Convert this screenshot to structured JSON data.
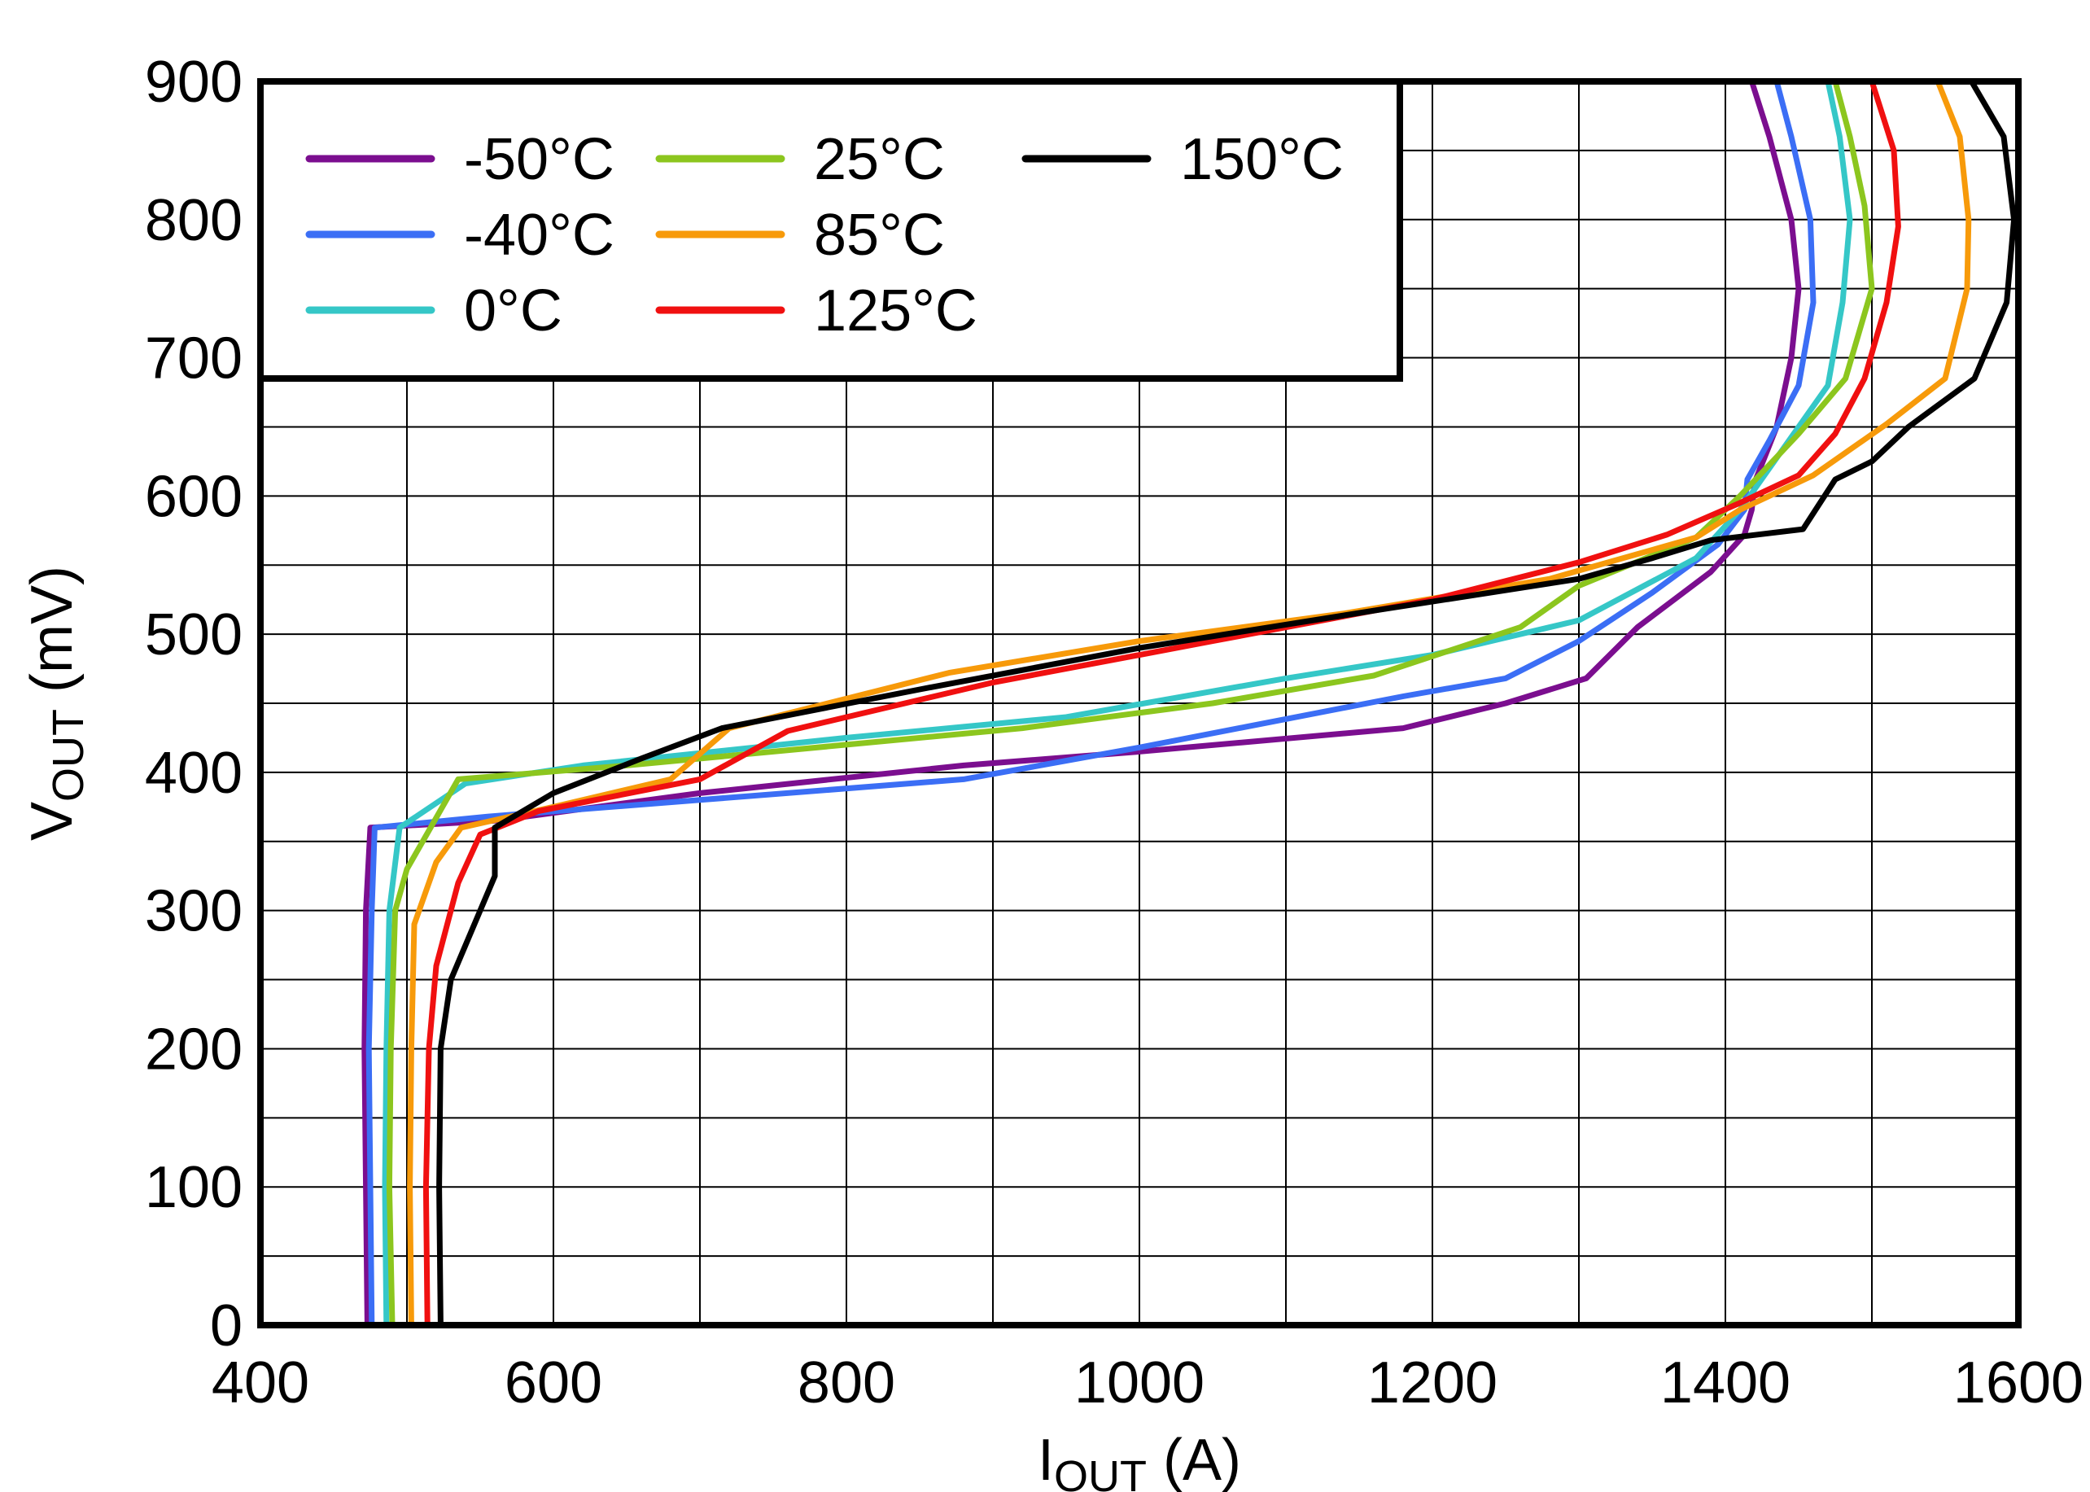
{
  "chart_data": {
    "type": "line",
    "title": "",
    "xlabel": {
      "main": "I",
      "sub": "OUT",
      "unit": " (A)"
    },
    "ylabel": {
      "main": "V",
      "sub": "OUT",
      "unit": " (mV)"
    },
    "xlim": [
      400,
      1600
    ],
    "ylim": [
      0,
      900
    ],
    "x_ticks": [
      400,
      600,
      800,
      1000,
      1200,
      1400,
      1600
    ],
    "y_ticks": [
      0,
      100,
      200,
      300,
      400,
      500,
      600,
      700,
      800,
      900
    ],
    "x_tick_labels": [
      "400",
      "600",
      "800",
      "1000",
      "1200",
      "1400",
      "1600"
    ],
    "y_tick_labels": [
      "0",
      "100",
      "200",
      "300",
      "400",
      "500",
      "600",
      "700",
      "800",
      "900"
    ],
    "x_minor_step": 100,
    "y_minor_step": 50,
    "grid": true,
    "legend_position": "top-left",
    "series": [
      {
        "name": "-50°C",
        "color": "#7B0E8F",
        "points": [
          [
            473,
            0
          ],
          [
            472,
            100
          ],
          [
            471,
            200
          ],
          [
            472,
            300
          ],
          [
            475,
            360
          ],
          [
            560,
            365
          ],
          [
            700,
            385
          ],
          [
            880,
            405
          ],
          [
            1000,
            415
          ],
          [
            1180,
            432
          ],
          [
            1250,
            450
          ],
          [
            1305,
            468
          ],
          [
            1340,
            505
          ],
          [
            1390,
            545
          ],
          [
            1413,
            572
          ],
          [
            1418,
            590
          ],
          [
            1420,
            610
          ],
          [
            1435,
            650
          ],
          [
            1445,
            700
          ],
          [
            1450,
            750
          ],
          [
            1445,
            800
          ],
          [
            1430,
            860
          ],
          [
            1418,
            900
          ]
        ]
      },
      {
        "name": "-40°C",
        "color": "#3B6EF5",
        "points": [
          [
            476,
            0
          ],
          [
            475,
            100
          ],
          [
            474,
            200
          ],
          [
            476,
            300
          ],
          [
            478,
            360
          ],
          [
            555,
            368
          ],
          [
            700,
            380
          ],
          [
            880,
            395
          ],
          [
            1000,
            418
          ],
          [
            1180,
            455
          ],
          [
            1250,
            468
          ],
          [
            1300,
            495
          ],
          [
            1350,
            530
          ],
          [
            1395,
            565
          ],
          [
            1413,
            590
          ],
          [
            1415,
            612
          ],
          [
            1430,
            640
          ],
          [
            1450,
            680
          ],
          [
            1460,
            740
          ],
          [
            1458,
            800
          ],
          [
            1445,
            860
          ],
          [
            1435,
            900
          ]
        ]
      },
      {
        "name": "0°C",
        "color": "#35C7C7",
        "points": [
          [
            486,
            0
          ],
          [
            485,
            100
          ],
          [
            486,
            200
          ],
          [
            488,
            300
          ],
          [
            495,
            360
          ],
          [
            540,
            392
          ],
          [
            620,
            405
          ],
          [
            800,
            425
          ],
          [
            950,
            440
          ],
          [
            1100,
            468
          ],
          [
            1200,
            485
          ],
          [
            1300,
            510
          ],
          [
            1380,
            555
          ],
          [
            1410,
            590
          ],
          [
            1440,
            635
          ],
          [
            1470,
            680
          ],
          [
            1480,
            740
          ],
          [
            1485,
            800
          ],
          [
            1478,
            860
          ],
          [
            1470,
            900
          ]
        ]
      },
      {
        "name": "25°C",
        "color": "#8CC61E",
        "points": [
          [
            490,
            0
          ],
          [
            488,
            100
          ],
          [
            489,
            200
          ],
          [
            492,
            300
          ],
          [
            500,
            330
          ],
          [
            535,
            395
          ],
          [
            650,
            405
          ],
          [
            800,
            420
          ],
          [
            920,
            432
          ],
          [
            1050,
            450
          ],
          [
            1160,
            470
          ],
          [
            1260,
            505
          ],
          [
            1300,
            535
          ],
          [
            1380,
            570
          ],
          [
            1410,
            600
          ],
          [
            1450,
            645
          ],
          [
            1482,
            685
          ],
          [
            1500,
            750
          ],
          [
            1495,
            810
          ],
          [
            1485,
            860
          ],
          [
            1475,
            900
          ]
        ]
      },
      {
        "name": "85°C",
        "color": "#F79A0A",
        "points": [
          [
            503,
            0
          ],
          [
            502,
            100
          ],
          [
            503,
            200
          ],
          [
            505,
            290
          ],
          [
            520,
            335
          ],
          [
            537,
            360
          ],
          [
            600,
            375
          ],
          [
            680,
            395
          ],
          [
            720,
            432
          ],
          [
            870,
            472
          ],
          [
            1000,
            495
          ],
          [
            1140,
            515
          ],
          [
            1280,
            540
          ],
          [
            1380,
            570
          ],
          [
            1410,
            590
          ],
          [
            1460,
            615
          ],
          [
            1510,
            652
          ],
          [
            1550,
            685
          ],
          [
            1565,
            750
          ],
          [
            1566,
            800
          ],
          [
            1560,
            860
          ],
          [
            1545,
            900
          ]
        ]
      },
      {
        "name": "125°C",
        "color": "#F01010",
        "points": [
          [
            514,
            0
          ],
          [
            513,
            100
          ],
          [
            515,
            200
          ],
          [
            520,
            260
          ],
          [
            535,
            320
          ],
          [
            550,
            355
          ],
          [
            590,
            372
          ],
          [
            700,
            395
          ],
          [
            760,
            430
          ],
          [
            900,
            465
          ],
          [
            1050,
            495
          ],
          [
            1200,
            525
          ],
          [
            1300,
            552
          ],
          [
            1360,
            572
          ],
          [
            1410,
            595
          ],
          [
            1450,
            615
          ],
          [
            1475,
            645
          ],
          [
            1495,
            685
          ],
          [
            1510,
            740
          ],
          [
            1518,
            795
          ],
          [
            1515,
            850
          ],
          [
            1500,
            900
          ]
        ]
      },
      {
        "name": "150°C",
        "color": "#000000",
        "points": [
          [
            523,
            0
          ],
          [
            522,
            100
          ],
          [
            523,
            200
          ],
          [
            530,
            250
          ],
          [
            560,
            325
          ],
          [
            560,
            360
          ],
          [
            600,
            385
          ],
          [
            660,
            410
          ],
          [
            715,
            432
          ],
          [
            850,
            460
          ],
          [
            1000,
            490
          ],
          [
            1160,
            517
          ],
          [
            1300,
            540
          ],
          [
            1350,
            555
          ],
          [
            1390,
            568
          ],
          [
            1453,
            576
          ],
          [
            1475,
            612
          ],
          [
            1500,
            625
          ],
          [
            1525,
            650
          ],
          [
            1570,
            685
          ],
          [
            1592,
            740
          ],
          [
            1597,
            800
          ],
          [
            1590,
            860
          ],
          [
            1568,
            900
          ]
        ]
      }
    ]
  }
}
